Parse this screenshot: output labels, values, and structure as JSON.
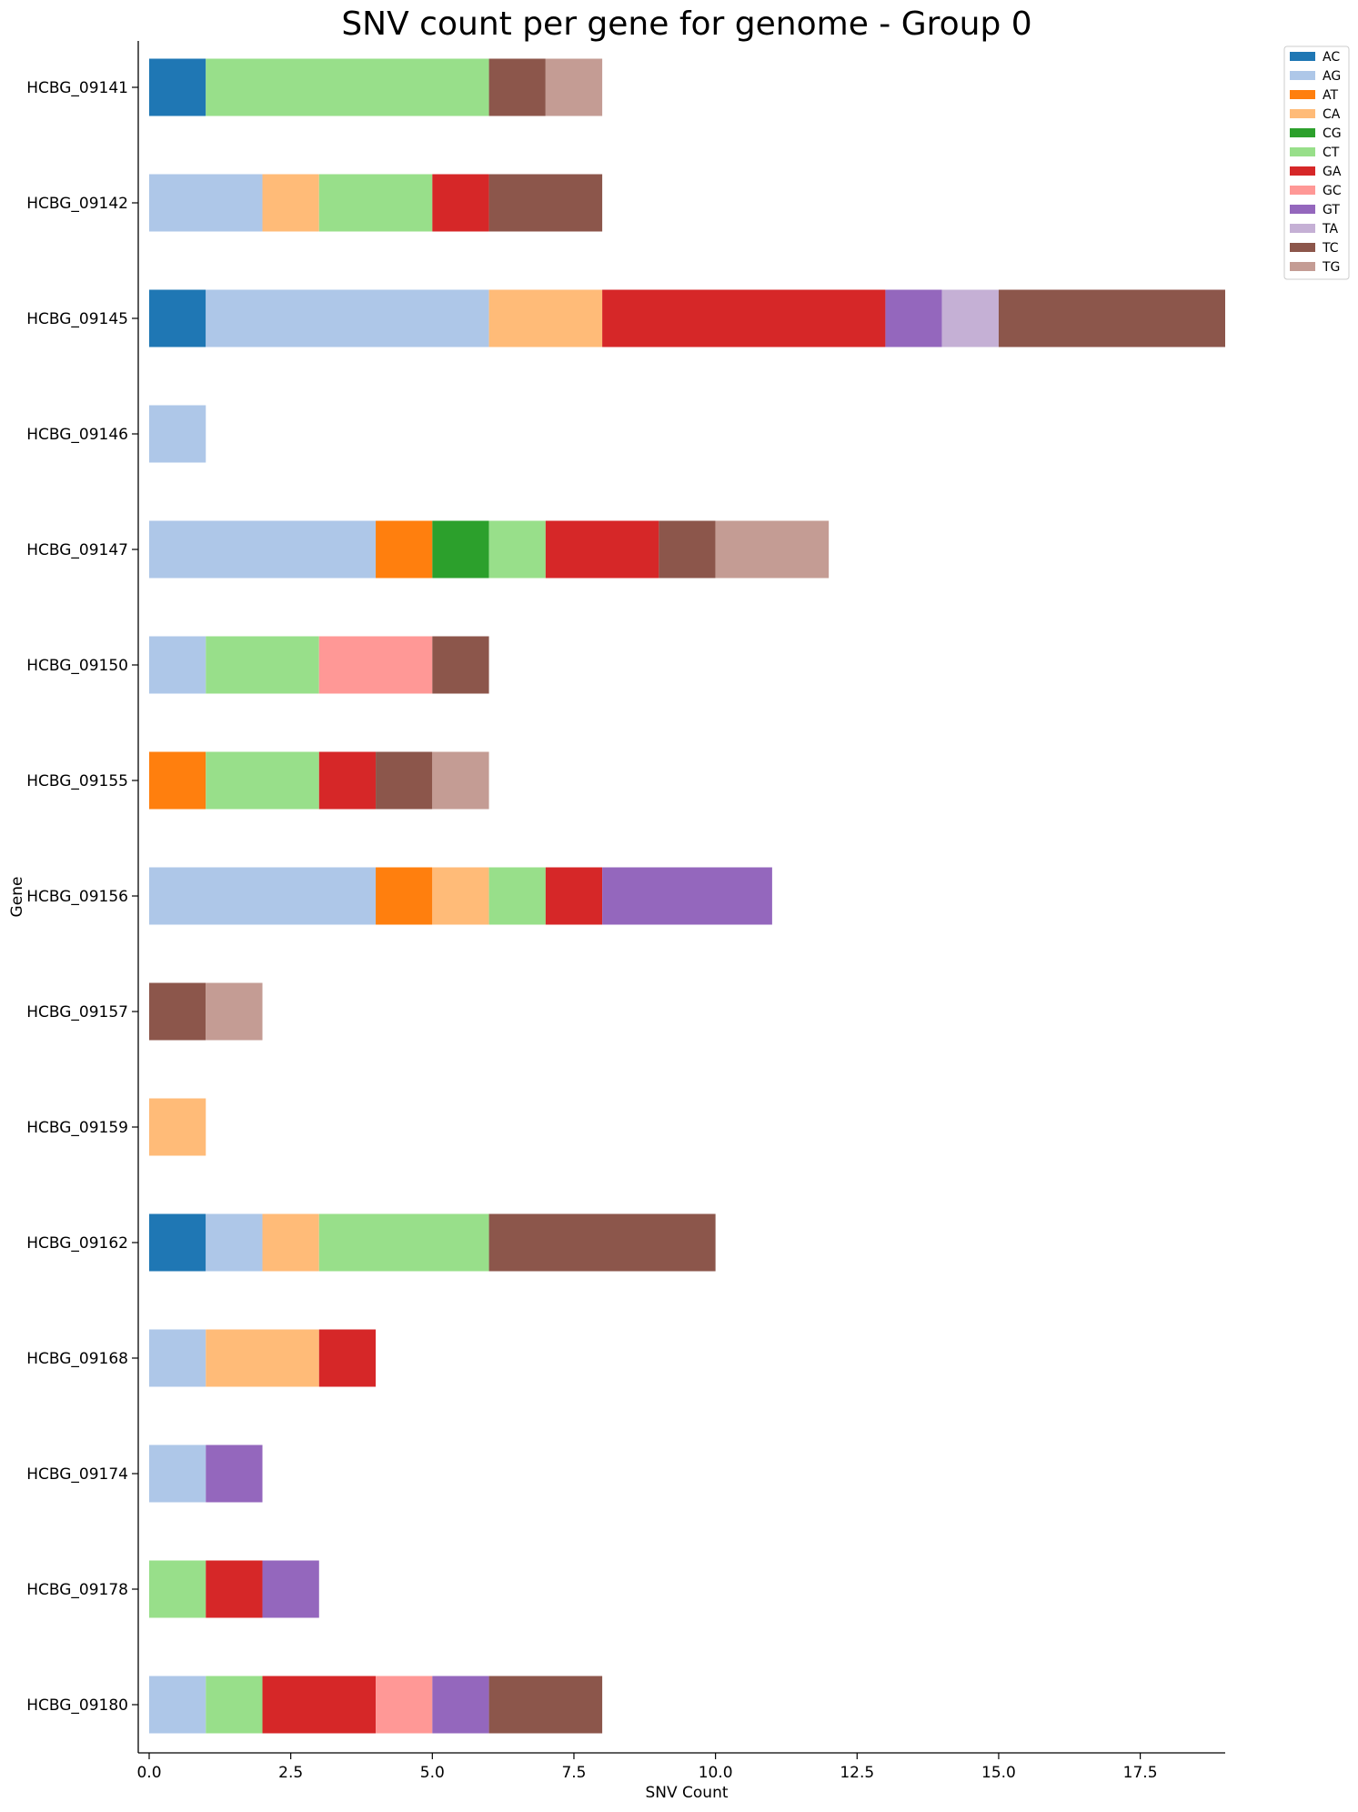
{
  "chart_data": {
    "type": "bar",
    "orientation": "horizontal",
    "stacked": true,
    "title": "SNV count per gene for genome - Group 0",
    "xlabel": "SNV Count",
    "ylabel": "Gene",
    "xlim": [
      0,
      19
    ],
    "xticks": [
      0,
      2.5,
      5,
      7.5,
      10,
      12.5,
      15,
      17.5
    ],
    "xtick_labels": [
      "0.0",
      "2.5",
      "5.0",
      "7.5",
      "10.0",
      "12.5",
      "15.0",
      "17.5"
    ],
    "grid": false,
    "legend_position": "top-right",
    "categories": [
      "HCBG_09141",
      "HCBG_09142",
      "HCBG_09145",
      "HCBG_09146",
      "HCBG_09147",
      "HCBG_09150",
      "HCBG_09155",
      "HCBG_09156",
      "HCBG_09157",
      "HCBG_09159",
      "HCBG_09162",
      "HCBG_09168",
      "HCBG_09174",
      "HCBG_09178",
      "HCBG_09180"
    ],
    "series": [
      {
        "name": "AC",
        "color": "#1f77b4",
        "values": [
          1,
          0,
          1,
          0,
          0,
          0,
          0,
          0,
          0,
          0,
          1,
          0,
          0,
          0,
          0
        ]
      },
      {
        "name": "AG",
        "color": "#aec7e8",
        "values": [
          0,
          2,
          5,
          1,
          4,
          1,
          0,
          4,
          0,
          0,
          1,
          1,
          1,
          0,
          1
        ]
      },
      {
        "name": "AT",
        "color": "#ff7f0e",
        "values": [
          0,
          0,
          0,
          0,
          1,
          0,
          1,
          1,
          0,
          0,
          0,
          0,
          0,
          0,
          0
        ]
      },
      {
        "name": "CA",
        "color": "#ffbb78",
        "values": [
          0,
          1,
          2,
          0,
          0,
          0,
          0,
          1,
          0,
          1,
          1,
          2,
          0,
          0,
          0
        ]
      },
      {
        "name": "CG",
        "color": "#2ca02c",
        "values": [
          0,
          0,
          0,
          0,
          1,
          0,
          0,
          0,
          0,
          0,
          0,
          0,
          0,
          0,
          0
        ]
      },
      {
        "name": "CT",
        "color": "#98df8a",
        "values": [
          5,
          2,
          0,
          0,
          1,
          2,
          2,
          1,
          0,
          0,
          3,
          0,
          0,
          1,
          1
        ]
      },
      {
        "name": "GA",
        "color": "#d62728",
        "values": [
          0,
          1,
          5,
          0,
          2,
          0,
          1,
          1,
          0,
          0,
          0,
          1,
          0,
          1,
          2
        ]
      },
      {
        "name": "GC",
        "color": "#ff9896",
        "values": [
          0,
          0,
          0,
          0,
          0,
          2,
          0,
          0,
          0,
          0,
          0,
          0,
          0,
          0,
          1
        ]
      },
      {
        "name": "GT",
        "color": "#9467bd",
        "values": [
          0,
          0,
          1,
          0,
          0,
          0,
          0,
          3,
          0,
          0,
          0,
          0,
          1,
          1,
          1
        ]
      },
      {
        "name": "TA",
        "color": "#c5b0d5",
        "values": [
          0,
          0,
          1,
          0,
          0,
          0,
          0,
          0,
          0,
          0,
          0,
          0,
          0,
          0,
          0
        ]
      },
      {
        "name": "TC",
        "color": "#8c564b",
        "values": [
          1,
          2,
          4,
          0,
          1,
          1,
          1,
          0,
          1,
          0,
          4,
          0,
          0,
          0,
          2
        ]
      },
      {
        "name": "TG",
        "color": "#c49c94",
        "values": [
          1,
          0,
          0,
          0,
          2,
          0,
          1,
          0,
          1,
          0,
          0,
          0,
          0,
          0,
          0
        ]
      }
    ]
  }
}
